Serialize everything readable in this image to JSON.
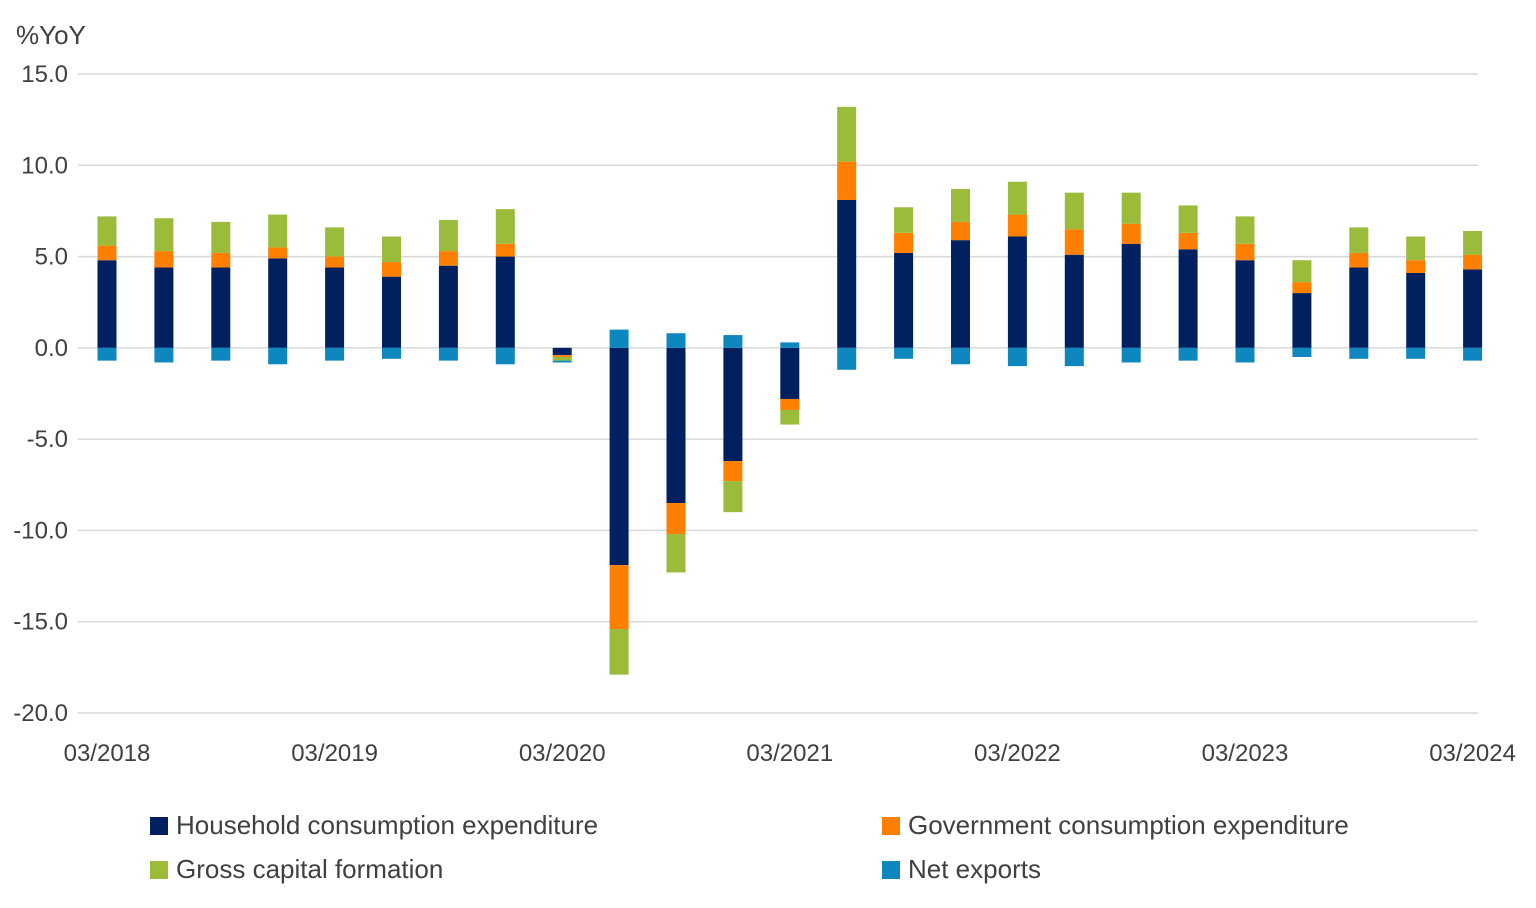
{
  "chart_data": {
    "type": "stacked-bar",
    "unit_label": "%YoY",
    "ylim": [
      -20,
      15
    ],
    "yticks": [
      15,
      10,
      5,
      0,
      -5,
      -10,
      -15,
      -20
    ],
    "ytick_labels": [
      "15.0",
      "10.0",
      "5.0",
      "0.0",
      "-5.0",
      "-10.0",
      "-15.0",
      "-20.0"
    ],
    "xtick_labels": [
      "03/2018",
      "03/2019",
      "03/2020",
      "03/2021",
      "03/2022",
      "03/2023",
      "03/2024"
    ],
    "xtick_positions": [
      0,
      4,
      8,
      12,
      16,
      20,
      24
    ],
    "categories": [
      "Q1 2018",
      "Q2 2018",
      "Q3 2018",
      "Q4 2018",
      "Q1 2019",
      "Q2 2019",
      "Q3 2019",
      "Q4 2019",
      "Q1 2020",
      "Q2 2020",
      "Q3 2020",
      "Q4 2020",
      "Q1 2021",
      "Q2 2021",
      "Q3 2021",
      "Q4 2021",
      "Q1 2022",
      "Q2 2022",
      "Q3 2022",
      "Q4 2022",
      "Q1 2023",
      "Q2 2023",
      "Q3 2023",
      "Q4 2023",
      "Q1 2024"
    ],
    "series": [
      {
        "name": "Household consumption expenditure",
        "color": "#002060",
        "values": [
          4.8,
          4.4,
          4.4,
          4.9,
          4.4,
          3.9,
          4.5,
          5.0,
          -0.4,
          -11.9,
          -8.5,
          -6.2,
          -2.8,
          8.1,
          5.2,
          5.9,
          6.1,
          5.1,
          5.7,
          5.4,
          4.8,
          3.0,
          4.4,
          4.1,
          4.3
        ]
      },
      {
        "name": "Government consumption expenditure",
        "color": "#FF7F00",
        "values": [
          0.8,
          0.9,
          0.8,
          0.6,
          0.6,
          0.8,
          0.8,
          0.7,
          -0.1,
          -3.5,
          -1.7,
          -1.1,
          -0.6,
          2.1,
          1.1,
          1.0,
          1.2,
          1.4,
          1.1,
          0.9,
          0.9,
          0.6,
          0.8,
          0.7,
          0.8
        ]
      },
      {
        "name": "Gross capital formation",
        "color": "#9BBB3B",
        "values": [
          1.6,
          1.8,
          1.7,
          1.8,
          1.6,
          1.4,
          1.7,
          1.9,
          -0.2,
          -2.5,
          -2.1,
          -1.7,
          -0.8,
          3.0,
          1.4,
          1.8,
          1.8,
          2.0,
          1.7,
          1.5,
          1.5,
          1.2,
          1.4,
          1.3,
          1.3
        ]
      },
      {
        "name": "Net exports",
        "color": "#0E86BE",
        "values": [
          -0.7,
          -0.8,
          -0.7,
          -0.9,
          -0.7,
          -0.6,
          -0.7,
          -0.9,
          -0.1,
          1.0,
          0.8,
          0.7,
          0.3,
          -1.2,
          -0.6,
          -0.9,
          -1.0,
          -1.0,
          -0.8,
          -0.7,
          -0.8,
          -0.5,
          -0.6,
          -0.6,
          -0.7
        ]
      }
    ],
    "legend_position": "bottom"
  }
}
